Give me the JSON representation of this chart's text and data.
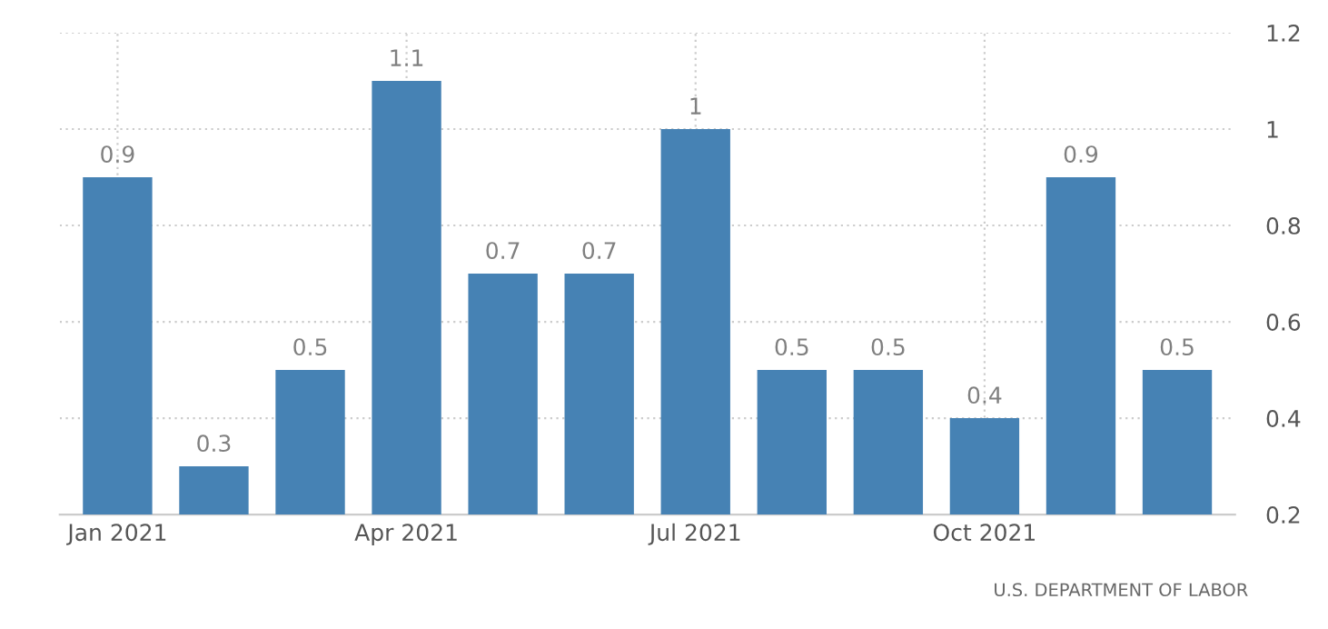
{
  "chart_data": {
    "type": "bar",
    "categories": [
      "Jan 2021",
      null,
      null,
      "Apr 2021",
      null,
      null,
      "Jul 2021",
      null,
      null,
      "Oct 2021",
      null,
      null
    ],
    "values": [
      0.9,
      0.3,
      0.5,
      1.1,
      0.7,
      0.7,
      1,
      0.5,
      0.5,
      0.4,
      0.9,
      0.5
    ],
    "color": "#4682b4",
    "ylim": [
      0.2,
      1.2
    ],
    "yticks": [
      0.2,
      0.4,
      0.6,
      0.8,
      1,
      1.2
    ],
    "grid": true,
    "data_labels": true,
    "annotations": [
      "U.S. DEPARTMENT OF LABOR"
    ]
  }
}
